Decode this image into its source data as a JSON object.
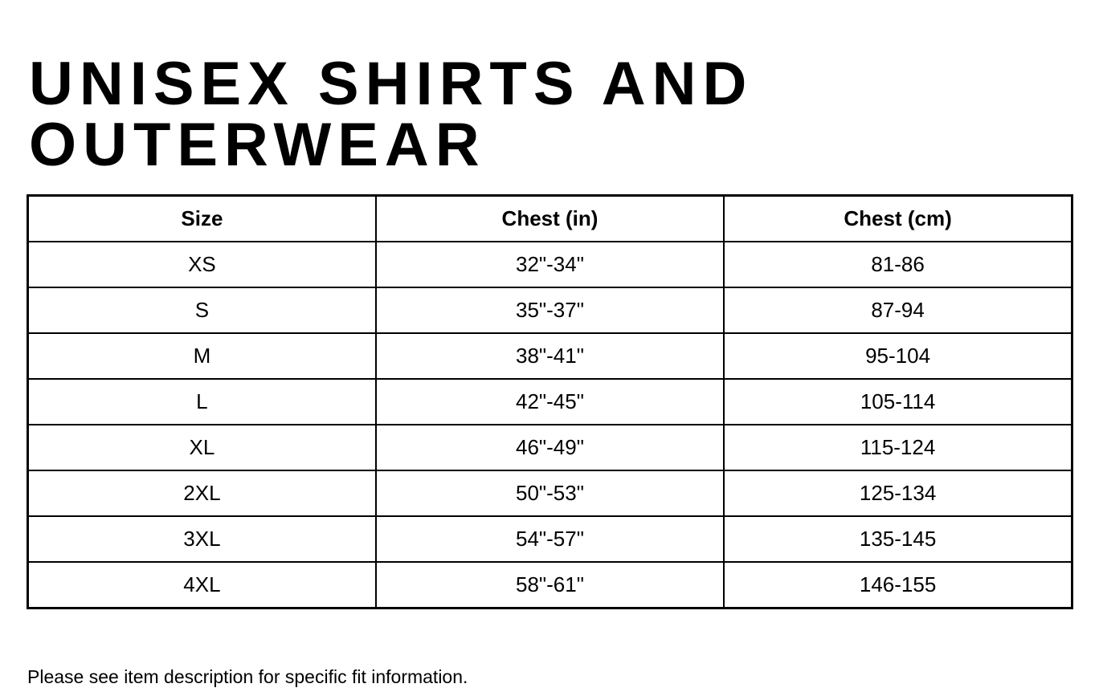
{
  "title": {
    "line1": "UNISEX SHIRTS AND",
    "line2": "OUTERWEAR",
    "full": "UNISEX SHIRTS AND OUTERWEAR"
  },
  "size_chart": {
    "columns": [
      "Size",
      "Chest (in)",
      "Chest (cm)"
    ],
    "rows": [
      [
        "XS",
        "32\"-34\"",
        "81-86"
      ],
      [
        "S",
        "35\"-37\"",
        "87-94"
      ],
      [
        "M",
        "38\"-41\"",
        "95-104"
      ],
      [
        "L",
        "42\"-45\"",
        "105-114"
      ],
      [
        "XL",
        "46\"-49\"",
        "115-124"
      ],
      [
        "2XL",
        "50\"-53\"",
        "125-134"
      ],
      [
        "3XL",
        "54\"-57\"",
        "135-145"
      ],
      [
        "4XL",
        "58\"-61\"",
        "146-155"
      ]
    ]
  },
  "footnote": "Please see item description for specific fit information.",
  "colors": {
    "text": "#000000",
    "background": "#ffffff",
    "table_border": "#000000"
  }
}
